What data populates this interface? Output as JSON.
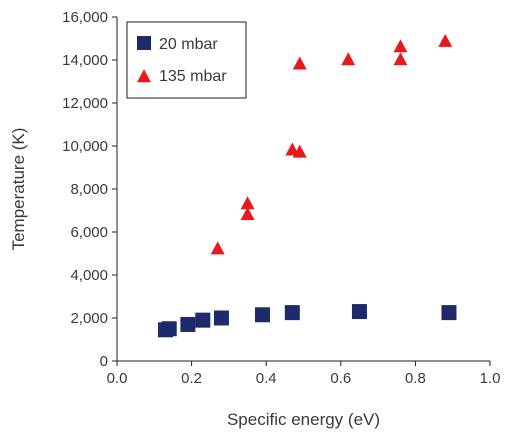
{
  "chart_data": {
    "type": "scatter",
    "xlabel": "Specific energy (eV)",
    "ylabel": "Temperature (K)",
    "xlim": [
      0.0,
      1.0
    ],
    "ylim": [
      0,
      16000
    ],
    "x_ticks": [
      "0.0",
      "0.2",
      "0.4",
      "0.6",
      "0.8",
      "1.0"
    ],
    "y_ticks": [
      "0",
      "2,000",
      "4,000",
      "6,000",
      "8,000",
      "10,000",
      "12,000",
      "14,000",
      "16,000"
    ],
    "grid": false,
    "legend_position": "top-left",
    "series": [
      {
        "name": "20 mbar",
        "marker": "square",
        "color": "#1f2a6b",
        "points": [
          {
            "x": 0.13,
            "y": 1450
          },
          {
            "x": 0.14,
            "y": 1500
          },
          {
            "x": 0.19,
            "y": 1700
          },
          {
            "x": 0.23,
            "y": 1900
          },
          {
            "x": 0.28,
            "y": 2000
          },
          {
            "x": 0.39,
            "y": 2150
          },
          {
            "x": 0.47,
            "y": 2250
          },
          {
            "x": 0.65,
            "y": 2300
          },
          {
            "x": 0.89,
            "y": 2250
          }
        ]
      },
      {
        "name": "135 mbar",
        "marker": "triangle",
        "color": "#e8191e",
        "points": [
          {
            "x": 0.27,
            "y": 5200
          },
          {
            "x": 0.35,
            "y": 6800
          },
          {
            "x": 0.35,
            "y": 7300
          },
          {
            "x": 0.47,
            "y": 9800
          },
          {
            "x": 0.49,
            "y": 9700
          },
          {
            "x": 0.49,
            "y": 13800
          },
          {
            "x": 0.62,
            "y": 14000
          },
          {
            "x": 0.76,
            "y": 14000
          },
          {
            "x": 0.76,
            "y": 14600
          },
          {
            "x": 0.88,
            "y": 14850
          }
        ]
      }
    ]
  }
}
